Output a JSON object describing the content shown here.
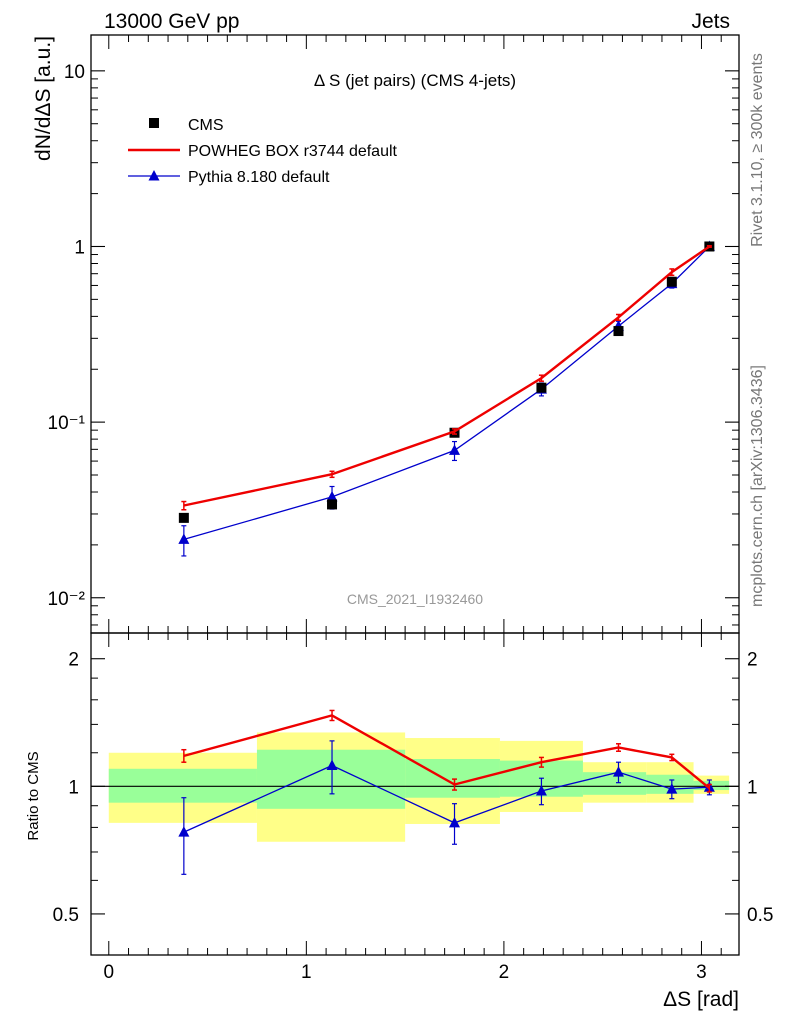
{
  "header": {
    "energy_label": "13000 GeV pp",
    "process_label": "Jets"
  },
  "side_labels": {
    "rivet": "Rivet 3.1.10, ≥ 300k events",
    "source": "mcplots.cern.ch [arXiv:1306.3436]"
  },
  "chart_data": [
    {
      "type": "line",
      "panel": "main",
      "title": "Δ S (jet pairs) (CMS 4-jets)",
      "analysis_label": "CMS_2021_I1932460",
      "xlabel": "ΔS [rad]",
      "ylabel": "dN/dΔS [a.u.]",
      "xlim": [
        -0.09,
        3.19
      ],
      "ylim": [
        0.0063,
        16
      ],
      "yscale": "log",
      "yticks": [
        0.01,
        0.1,
        1,
        10
      ],
      "yticklabels": [
        "10⁻²",
        "10⁻¹",
        "1",
        "10"
      ],
      "grid": false,
      "legend_position": "top-left",
      "series": [
        {
          "name": "CMS",
          "style": "markers",
          "marker": "square",
          "color": "#000000",
          "x": [
            0.38,
            1.13,
            1.75,
            2.19,
            2.58,
            2.85,
            3.04
          ],
          "y": [
            0.0285,
            0.034,
            0.087,
            0.157,
            0.33,
            0.63,
            1.0
          ]
        },
        {
          "name": "POWHEG BOX r3744 default",
          "style": "line",
          "color": "#ee0000",
          "x": [
            0.38,
            1.13,
            1.75,
            2.19,
            2.58,
            2.85,
            3.04
          ],
          "y": [
            0.0335,
            0.0505,
            0.0885,
            0.178,
            0.395,
            0.715,
            1.0
          ],
          "yerr": [
            0.0018,
            0.002,
            0.003,
            0.007,
            0.015,
            0.03,
            0.01
          ]
        },
        {
          "name": "Pythia 8.180 default",
          "style": "line+markers",
          "marker": "triangle",
          "color": "#0000cc",
          "x": [
            0.38,
            1.13,
            1.75,
            2.19,
            2.58,
            2.85,
            3.04
          ],
          "y": [
            0.0215,
            0.0375,
            0.069,
            0.154,
            0.352,
            0.615,
            1.0
          ],
          "yerr": [
            0.0042,
            0.0055,
            0.0085,
            0.013,
            0.023,
            0.035,
            0.02
          ]
        }
      ]
    },
    {
      "type": "line",
      "panel": "ratio",
      "xlabel": "ΔS [rad]",
      "ylabel": "Ratio to CMS",
      "xlim": [
        -0.09,
        3.19
      ],
      "ylim": [
        0.4,
        2.3
      ],
      "yscale": "log",
      "yticks": [
        0.5,
        1,
        2
      ],
      "yticklabels": [
        "0.5",
        "1",
        "2"
      ],
      "xticks": [
        0,
        1,
        2,
        3
      ],
      "xticklabels": [
        "0",
        "1",
        "2",
        "3"
      ],
      "reference": 1,
      "bands": [
        {
          "x0": 0.0,
          "x1": 0.75,
          "stat": [
            0.915,
            1.1
          ],
          "total": [
            0.82,
            1.2
          ]
        },
        {
          "x0": 0.75,
          "x1": 1.5,
          "stat": [
            0.885,
            1.22
          ],
          "total": [
            0.74,
            1.34
          ]
        },
        {
          "x0": 1.5,
          "x1": 1.98,
          "stat": [
            0.94,
            1.16
          ],
          "total": [
            0.815,
            1.3
          ]
        },
        {
          "x0": 1.98,
          "x1": 2.4,
          "stat": [
            0.945,
            1.15
          ],
          "total": [
            0.87,
            1.28
          ]
        },
        {
          "x0": 2.4,
          "x1": 2.72,
          "stat": [
            0.955,
            1.08
          ],
          "total": [
            0.915,
            1.14
          ]
        },
        {
          "x0": 2.72,
          "x1": 2.96,
          "stat": [
            0.96,
            1.065
          ],
          "total": [
            0.915,
            1.14
          ]
        },
        {
          "x0": 2.96,
          "x1": 3.14,
          "stat": [
            0.98,
            1.03
          ],
          "total": [
            0.96,
            1.06
          ]
        }
      ],
      "series": [
        {
          "name": "POWHEG BOX r3744 default",
          "color": "#ee0000",
          "x": [
            0.38,
            1.13,
            1.75,
            2.19,
            2.58,
            2.85,
            3.04
          ],
          "y": [
            1.18,
            1.47,
            1.01,
            1.14,
            1.235,
            1.17,
            0.99
          ],
          "yerr": [
            0.04,
            0.04,
            0.03,
            0.03,
            0.025,
            0.02,
            0.02
          ]
        },
        {
          "name": "Pythia 8.180 default",
          "color": "#0000cc",
          "x": [
            0.38,
            1.13,
            1.75,
            2.19,
            2.58,
            2.85,
            3.04
          ],
          "y": [
            0.78,
            1.12,
            0.82,
            0.975,
            1.08,
            0.985,
            0.995
          ],
          "yerr": [
            0.16,
            0.16,
            0.09,
            0.07,
            0.06,
            0.05,
            0.04
          ]
        }
      ]
    }
  ],
  "colors": {
    "stat_band": "#99ff99",
    "total_band": "#ffff88",
    "reference_line": "#000000"
  }
}
